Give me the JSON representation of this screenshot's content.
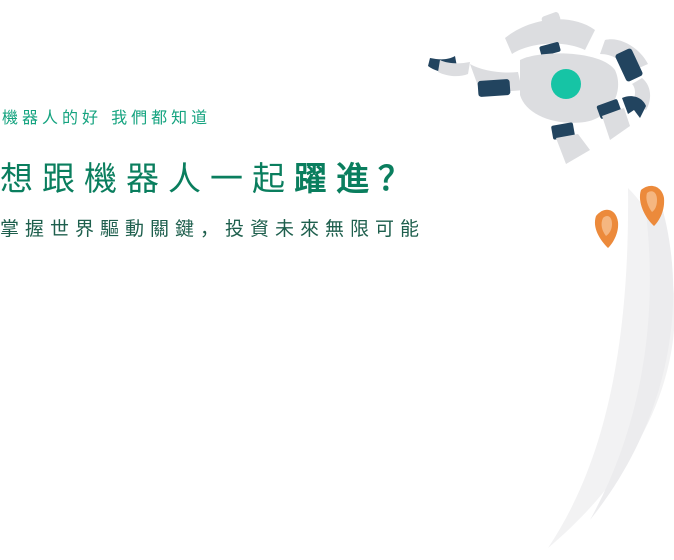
{
  "hero": {
    "eyebrow": "機器人的好  我們都知道",
    "headline_part1": "想跟機器人一起",
    "headline_part2": "躍進",
    "headline_part3": "？",
    "subline": "掌握世界驅動關鍵，投資未來無限可能"
  },
  "colors": {
    "accent_green": "#14a37f",
    "headline_green": "#0a7e5e",
    "robot_navy": "#22445f",
    "robot_teal": "#16c4a5",
    "robot_gray": "#dcdde0",
    "flame_orange": "#ec8a3b"
  },
  "illustration": {
    "robot_icon": "robot-icon",
    "thruster_icon": "rocket-flame-icon",
    "trail_icon": "speed-trail-icon"
  }
}
